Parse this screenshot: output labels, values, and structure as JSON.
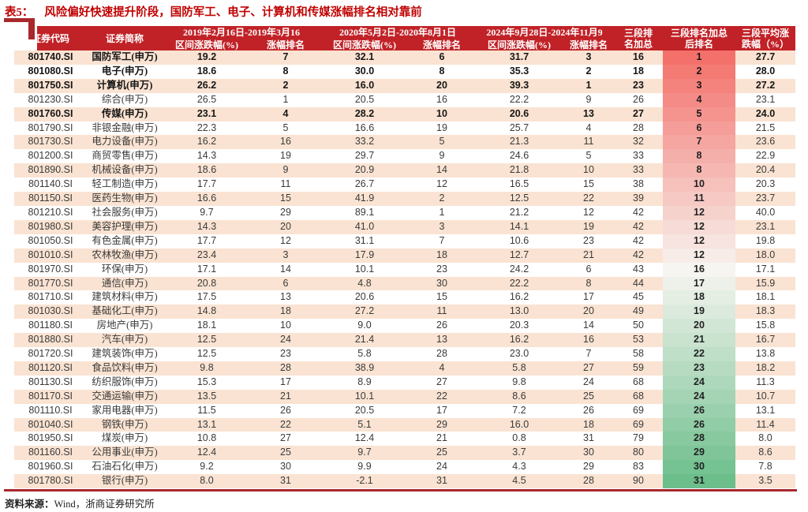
{
  "title": {
    "tag": "表5：",
    "text": "风险偏好快速提升阶段，国防军工、电子、计算机和传媒涨幅排名相对靠前"
  },
  "colors": {
    "header_bg": "#C12227",
    "accent_red": "#C00000",
    "row_alt": "#FAE3D2",
    "rule_red": "#A8282C",
    "rank_scale_top": "#F4716B",
    "rank_scale_mid": "#F7F5F1",
    "rank_scale_bottom": "#6CBE8B"
  },
  "table": {
    "col_headers": {
      "code": "证券代码",
      "name": "证券简称",
      "period1": "2019年2月16日-2019年3月16",
      "period2": "2020年5月2日-2020年8月1日",
      "period3": "2024年9月28日-2024年11月9",
      "sub_change": "区间涨跌幅(%)",
      "sub_rank": "涨幅排名",
      "sum": "三段排\n名加总",
      "final_rank": "三段排名加总\n后排名",
      "avg": "三段平均涨\n跌幅（%）"
    },
    "cell_names": [
      "code",
      "name",
      "p1-change",
      "p1-rank",
      "p2-change",
      "p2-rank",
      "p3-change",
      "p3-rank",
      "rank-sum",
      "final-rank",
      "avg-change"
    ],
    "rows": [
      {
        "cells": [
          "801740.SI",
          "国防军工(申万)",
          "19.2",
          "7",
          "32.1",
          "6",
          "31.7",
          "3",
          "16",
          "1",
          "27.7"
        ],
        "bold": true
      },
      {
        "cells": [
          "801080.SI",
          "电子(申万)",
          "18.6",
          "8",
          "30.0",
          "8",
          "35.3",
          "2",
          "18",
          "2",
          "28.0"
        ],
        "bold": true
      },
      {
        "cells": [
          "801750.SI",
          "计算机(申万)",
          "26.2",
          "2",
          "16.0",
          "20",
          "39.3",
          "1",
          "23",
          "3",
          "27.2"
        ],
        "bold": true
      },
      {
        "cells": [
          "801230.SI",
          "综合(申万)",
          "26.5",
          "1",
          "20.5",
          "16",
          "22.2",
          "9",
          "26",
          "4",
          "23.1"
        ],
        "bold": false
      },
      {
        "cells": [
          "801760.SI",
          "传媒(申万)",
          "23.1",
          "4",
          "28.2",
          "10",
          "20.6",
          "13",
          "27",
          "5",
          "24.0"
        ],
        "bold": true
      },
      {
        "cells": [
          "801790.SI",
          "非银金融(申万)",
          "22.3",
          "5",
          "16.6",
          "19",
          "25.7",
          "4",
          "28",
          "6",
          "21.5"
        ],
        "bold": false
      },
      {
        "cells": [
          "801730.SI",
          "电力设备(申万)",
          "16.2",
          "16",
          "33.2",
          "5",
          "21.3",
          "11",
          "32",
          "7",
          "23.6"
        ],
        "bold": false
      },
      {
        "cells": [
          "801200.SI",
          "商贸零售(申万)",
          "14.3",
          "19",
          "29.7",
          "9",
          "24.6",
          "5",
          "33",
          "8",
          "22.9"
        ],
        "bold": false
      },
      {
        "cells": [
          "801890.SI",
          "机械设备(申万)",
          "18.6",
          "9",
          "20.9",
          "14",
          "21.8",
          "10",
          "33",
          "8",
          "20.4"
        ],
        "bold": false
      },
      {
        "cells": [
          "801140.SI",
          "轻工制造(申万)",
          "17.7",
          "11",
          "26.7",
          "12",
          "16.5",
          "15",
          "38",
          "10",
          "20.3"
        ],
        "bold": false
      },
      {
        "cells": [
          "801150.SI",
          "医药生物(申万)",
          "16.6",
          "15",
          "41.9",
          "2",
          "12.5",
          "22",
          "39",
          "11",
          "23.7"
        ],
        "bold": false
      },
      {
        "cells": [
          "801210.SI",
          "社会服务(申万)",
          "9.7",
          "29",
          "89.1",
          "1",
          "21.2",
          "12",
          "42",
          "12",
          "40.0"
        ],
        "bold": false
      },
      {
        "cells": [
          "801980.SI",
          "美容护理(申万)",
          "14.3",
          "20",
          "41.0",
          "3",
          "14.1",
          "19",
          "42",
          "12",
          "23.1"
        ],
        "bold": false
      },
      {
        "cells": [
          "801050.SI",
          "有色金属(申万)",
          "17.7",
          "12",
          "31.1",
          "7",
          "10.6",
          "23",
          "42",
          "12",
          "19.8"
        ],
        "bold": false
      },
      {
        "cells": [
          "801010.SI",
          "农林牧渔(申万)",
          "23.4",
          "3",
          "17.9",
          "18",
          "12.7",
          "21",
          "42",
          "12",
          "18.0"
        ],
        "bold": false
      },
      {
        "cells": [
          "801970.SI",
          "环保(申万)",
          "17.1",
          "14",
          "10.1",
          "23",
          "24.2",
          "6",
          "43",
          "16",
          "17.1"
        ],
        "bold": false
      },
      {
        "cells": [
          "801770.SI",
          "通信(申万)",
          "20.8",
          "6",
          "4.8",
          "30",
          "22.2",
          "8",
          "44",
          "17",
          "15.9"
        ],
        "bold": false
      },
      {
        "cells": [
          "801710.SI",
          "建筑材料(申万)",
          "17.5",
          "13",
          "20.6",
          "15",
          "16.2",
          "17",
          "45",
          "18",
          "18.1"
        ],
        "bold": false
      },
      {
        "cells": [
          "801030.SI",
          "基础化工(申万)",
          "14.8",
          "18",
          "27.2",
          "11",
          "13.0",
          "20",
          "49",
          "19",
          "18.3"
        ],
        "bold": false
      },
      {
        "cells": [
          "801180.SI",
          "房地产(申万)",
          "18.1",
          "10",
          "9.0",
          "26",
          "20.3",
          "14",
          "50",
          "20",
          "15.8"
        ],
        "bold": false
      },
      {
        "cells": [
          "801880.SI",
          "汽车(申万)",
          "12.5",
          "24",
          "21.4",
          "13",
          "16.2",
          "16",
          "53",
          "21",
          "16.7"
        ],
        "bold": false
      },
      {
        "cells": [
          "801720.SI",
          "建筑装饰(申万)",
          "12.5",
          "23",
          "5.8",
          "28",
          "23.0",
          "7",
          "58",
          "22",
          "13.8"
        ],
        "bold": false
      },
      {
        "cells": [
          "801120.SI",
          "食品饮料(申万)",
          "9.8",
          "28",
          "38.9",
          "4",
          "5.8",
          "27",
          "59",
          "23",
          "18.2"
        ],
        "bold": false
      },
      {
        "cells": [
          "801130.SI",
          "纺织服饰(申万)",
          "15.3",
          "17",
          "8.9",
          "27",
          "9.8",
          "24",
          "68",
          "24",
          "11.3"
        ],
        "bold": false
      },
      {
        "cells": [
          "801170.SI",
          "交通运输(申万)",
          "13.5",
          "21",
          "10.1",
          "22",
          "8.6",
          "25",
          "68",
          "24",
          "10.7"
        ],
        "bold": false
      },
      {
        "cells": [
          "801110.SI",
          "家用电器(申万)",
          "11.5",
          "26",
          "20.5",
          "17",
          "7.2",
          "26",
          "69",
          "26",
          "13.1"
        ],
        "bold": false
      },
      {
        "cells": [
          "801040.SI",
          "钢铁(申万)",
          "13.1",
          "22",
          "5.1",
          "29",
          "16.0",
          "18",
          "69",
          "26",
          "11.4"
        ],
        "bold": false
      },
      {
        "cells": [
          "801950.SI",
          "煤炭(申万)",
          "10.8",
          "27",
          "12.4",
          "21",
          "0.8",
          "31",
          "79",
          "28",
          "8.0"
        ],
        "bold": false
      },
      {
        "cells": [
          "801160.SI",
          "公用事业(申万)",
          "12.4",
          "25",
          "9.7",
          "25",
          "3.7",
          "30",
          "80",
          "29",
          "8.6"
        ],
        "bold": false
      },
      {
        "cells": [
          "801960.SI",
          "石油石化(申万)",
          "9.2",
          "30",
          "9.9",
          "24",
          "4.3",
          "29",
          "83",
          "30",
          "7.8"
        ],
        "bold": false
      },
      {
        "cells": [
          "801780.SI",
          "银行(申万)",
          "8.0",
          "31",
          "-2.1",
          "31",
          "4.5",
          "28",
          "90",
          "31",
          "3.5"
        ],
        "bold": false
      }
    ]
  },
  "footer": {
    "label": "资料来源：",
    "text": "Wind，浙商证券研究所"
  }
}
